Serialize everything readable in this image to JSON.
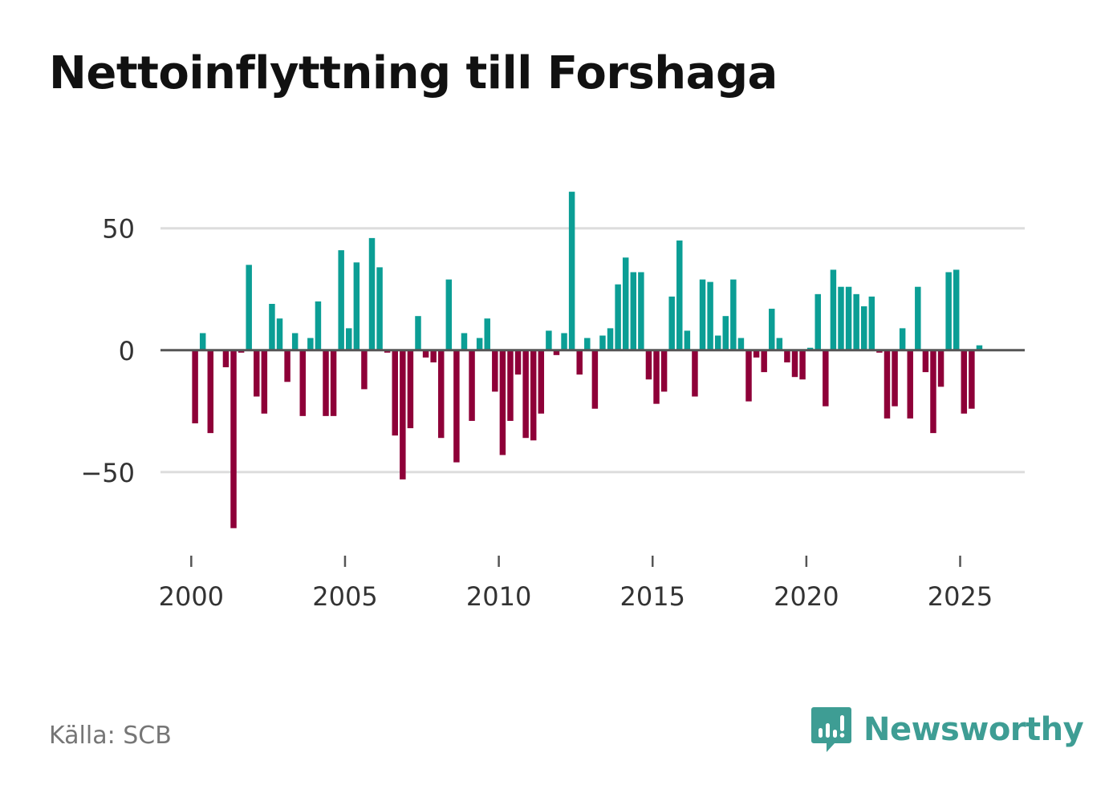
{
  "title": "Nettoinflyttning till Forshaga",
  "source": "Källa: SCB",
  "brand": {
    "name": "Newsworthy",
    "icon": "bar-chart-speech-bubble-icon",
    "color": "#3e9d94"
  },
  "colors": {
    "positive": "#0b9e95",
    "negative": "#8e0038",
    "grid": "#dddddd",
    "zero_line": "#555555",
    "text": "#333333"
  },
  "chart_data": {
    "type": "bar",
    "title": "Nettoinflyttning till Forshaga",
    "xlabel": "",
    "ylabel": "",
    "ylim": [
      -80,
      68
    ],
    "xlim": [
      1999,
      2027.1
    ],
    "yticks": [
      -50,
      0,
      50
    ],
    "ytick_labels": [
      "−50",
      "0",
      "50"
    ],
    "xticks": [
      2000,
      2005,
      2010,
      2015,
      2020,
      2025
    ],
    "xtick_labels": [
      "2000",
      "2005",
      "2010",
      "2015",
      "2020",
      "2025"
    ],
    "grid": true,
    "legend": "none",
    "period": "quarterly",
    "x_start": 2000.125,
    "x_step": 0.25,
    "values": [
      -30,
      7,
      -34,
      0,
      -7,
      -73,
      -1,
      35,
      -19,
      -26,
      19,
      13,
      -13,
      7,
      -27,
      5,
      20,
      -27,
      -27,
      41,
      9,
      36,
      -16,
      46,
      34,
      -1,
      -35,
      -53,
      -32,
      14,
      -3,
      -5,
      -36,
      29,
      -46,
      7,
      -29,
      5,
      13,
      -17,
      -43,
      -29,
      -10,
      -36,
      -37,
      -26,
      8,
      -2,
      7,
      65,
      -10,
      5,
      -24,
      6,
      9,
      27,
      38,
      32,
      32,
      -12,
      -22,
      -17,
      22,
      45,
      8,
      -19,
      29,
      28,
      6,
      14,
      29,
      5,
      -21,
      -3,
      -9,
      17,
      5,
      -5,
      -11,
      -12,
      1,
      23,
      -23,
      33,
      26,
      26,
      23,
      18,
      22,
      -1,
      -28,
      -23,
      9,
      -28,
      26,
      -9,
      -34,
      -15,
      32,
      33,
      -26,
      -24,
      2
    ]
  }
}
